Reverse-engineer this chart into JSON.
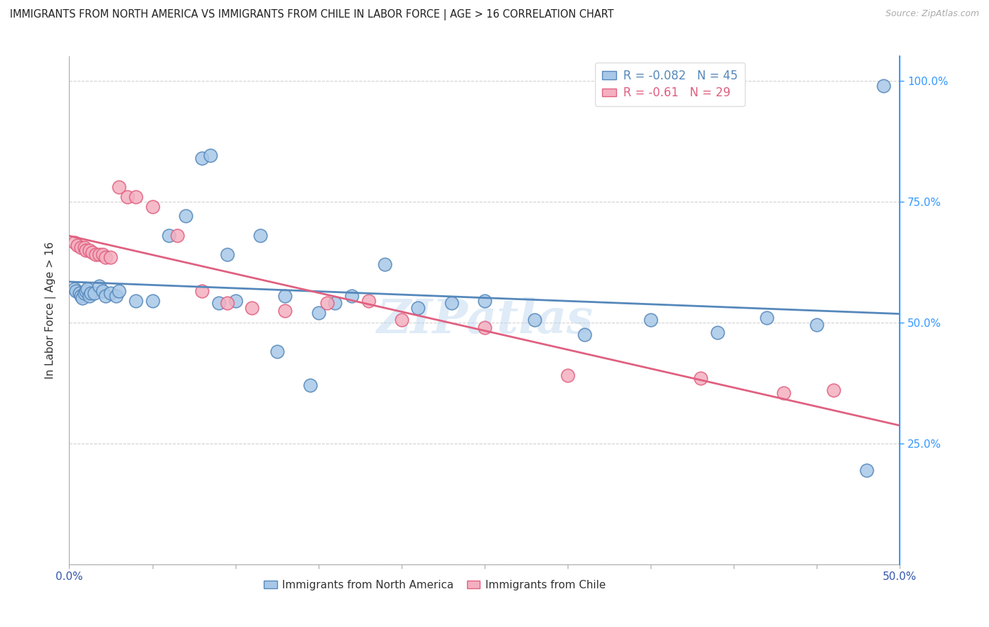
{
  "title": "IMMIGRANTS FROM NORTH AMERICA VS IMMIGRANTS FROM CHILE IN LABOR FORCE | AGE > 16 CORRELATION CHART",
  "source": "Source: ZipAtlas.com",
  "ylabel": "In Labor Force | Age > 16",
  "xlim": [
    0.0,
    0.5
  ],
  "ylim": [
    0.0,
    1.05
  ],
  "R_north": -0.082,
  "N_north": 45,
  "R_chile": -0.61,
  "N_chile": 29,
  "color_north": "#a8c8e8",
  "color_chile": "#f4b0c0",
  "line_color_north": "#5588bb",
  "line_color_chile": "#e06080",
  "scatter_north_x": [
    0.003,
    0.004,
    0.006,
    0.007,
    0.008,
    0.009,
    0.01,
    0.011,
    0.012,
    0.013,
    0.015,
    0.018,
    0.02,
    0.022,
    0.025,
    0.028,
    0.03,
    0.04,
    0.05,
    0.06,
    0.07,
    0.08,
    0.09,
    0.1,
    0.115,
    0.13,
    0.15,
    0.17,
    0.19,
    0.21,
    0.23,
    0.25,
    0.28,
    0.31,
    0.35,
    0.39,
    0.42,
    0.45,
    0.48,
    0.085,
    0.095,
    0.125,
    0.145,
    0.16,
    0.49
  ],
  "scatter_north_y": [
    0.57,
    0.565,
    0.56,
    0.555,
    0.55,
    0.56,
    0.565,
    0.57,
    0.555,
    0.56,
    0.56,
    0.575,
    0.565,
    0.555,
    0.56,
    0.555,
    0.565,
    0.545,
    0.545,
    0.68,
    0.72,
    0.84,
    0.54,
    0.545,
    0.68,
    0.555,
    0.52,
    0.555,
    0.62,
    0.53,
    0.54,
    0.545,
    0.505,
    0.475,
    0.505,
    0.48,
    0.51,
    0.495,
    0.195,
    0.845,
    0.64,
    0.44,
    0.37,
    0.54,
    0.99
  ],
  "scatter_chile_x": [
    0.003,
    0.005,
    0.007,
    0.009,
    0.01,
    0.012,
    0.014,
    0.016,
    0.018,
    0.02,
    0.022,
    0.025,
    0.03,
    0.035,
    0.04,
    0.05,
    0.065,
    0.08,
    0.095,
    0.11,
    0.13,
    0.155,
    0.18,
    0.2,
    0.25,
    0.3,
    0.38,
    0.43,
    0.46
  ],
  "scatter_chile_y": [
    0.665,
    0.66,
    0.655,
    0.655,
    0.65,
    0.65,
    0.645,
    0.64,
    0.64,
    0.64,
    0.635,
    0.635,
    0.78,
    0.76,
    0.76,
    0.74,
    0.68,
    0.565,
    0.54,
    0.53,
    0.525,
    0.54,
    0.545,
    0.505,
    0.49,
    0.39,
    0.385,
    0.355,
    0.36
  ],
  "watermark": "ZIPatlas",
  "background_color": "#ffffff",
  "grid_color": "#cccccc",
  "right_y_ticks": [
    0.25,
    0.5,
    0.75,
    1.0
  ],
  "right_y_labels": [
    "25.0%",
    "50.0%",
    "75.0%",
    "100.0%"
  ]
}
